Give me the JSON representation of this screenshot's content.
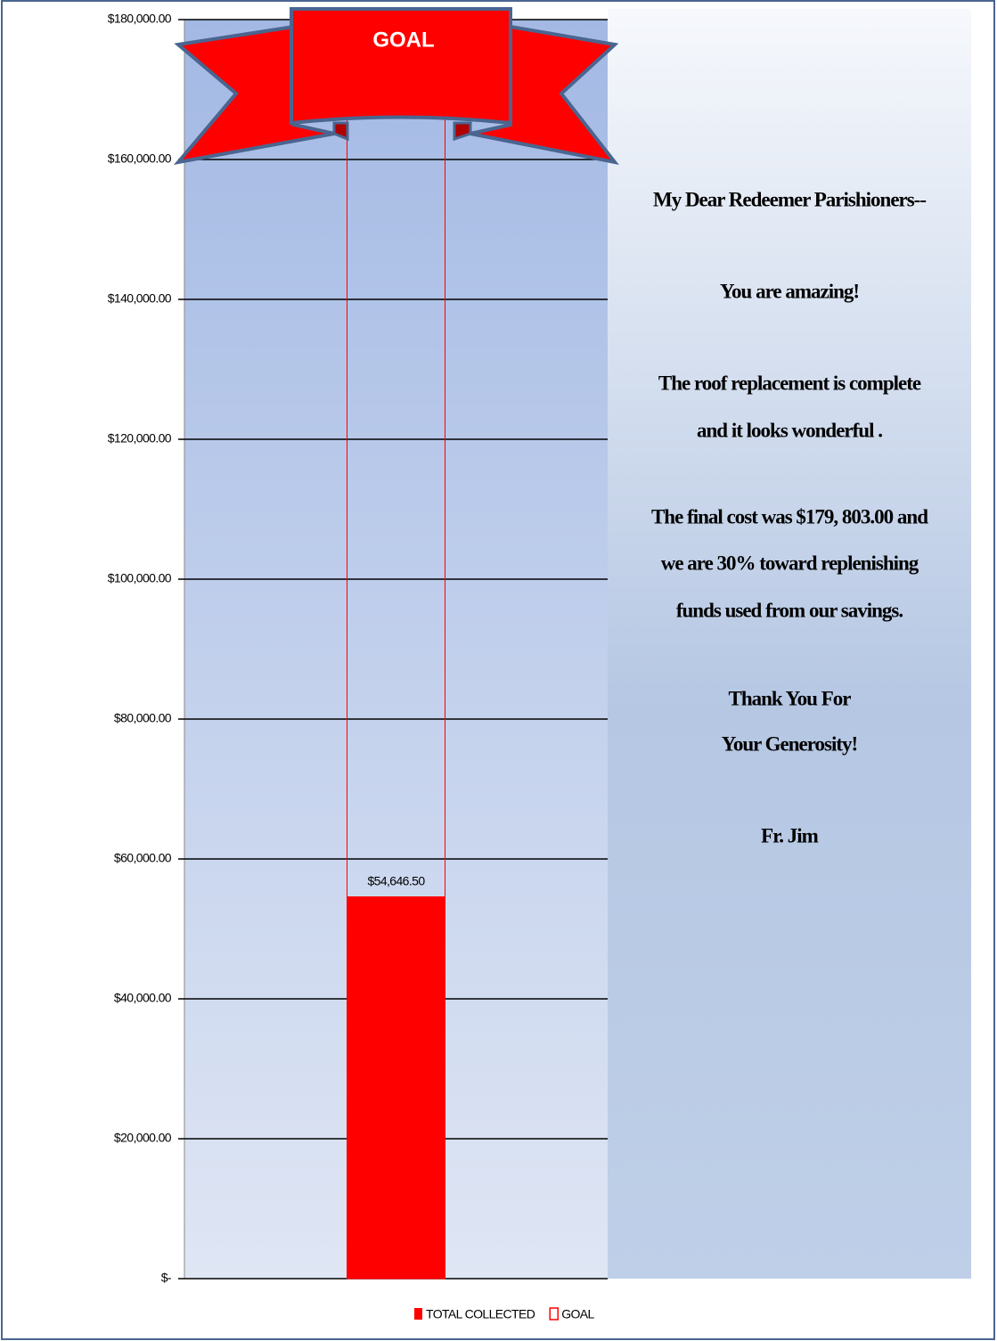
{
  "chart_data": {
    "type": "bar",
    "banner_label": "GOAL",
    "categories": [
      null
    ],
    "series": [
      {
        "name": "TOTAL COLLECTED",
        "color": "#ff0000",
        "values": [
          54646.5
        ],
        "value_labels": [
          "$54,646.50"
        ]
      },
      {
        "name": "GOAL",
        "color": "#ff0000",
        "hollow": true,
        "values": [
          180000
        ]
      }
    ],
    "ylim": [
      0,
      180000
    ],
    "yticks": [
      {
        "value": 0,
        "label": "$-"
      },
      {
        "value": 20000,
        "label": "$20,000.00"
      },
      {
        "value": 40000,
        "label": "$40,000.00"
      },
      {
        "value": 60000,
        "label": "$60,000.00"
      },
      {
        "value": 80000,
        "label": "$80,000.00"
      },
      {
        "value": 100000,
        "label": "$100,000.00"
      },
      {
        "value": 120000,
        "label": "$120,000.00"
      },
      {
        "value": 140000,
        "label": "$140,000.00"
      },
      {
        "value": 160000,
        "label": "$160,000.00"
      },
      {
        "value": 180000,
        "label": "$180,000.00"
      }
    ],
    "grid": true,
    "legend": "bottom",
    "message": [
      "My Dear Redeemer Parishioners--",
      "You are amazing!",
      "The roof  replacement is complete",
      "and it looks wonderful .",
      "The final cost was $179, 803.00 and",
      "we  are 30% toward replenishing",
      "funds used from our savings.",
      "Thank You For",
      "Your Generosity!",
      "Fr. Jim"
    ]
  }
}
